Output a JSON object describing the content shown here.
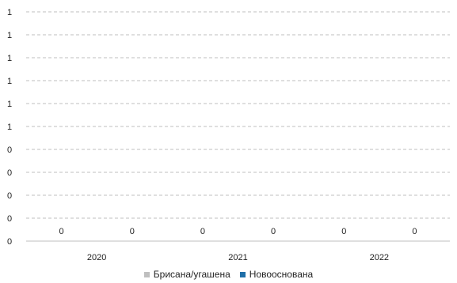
{
  "chart_data": {
    "type": "bar",
    "categories": [
      "2020",
      "2021",
      "2022"
    ],
    "series": [
      {
        "name": "Брисана/угашена",
        "values": [
          0,
          0,
          0
        ],
        "color": "#bfbfbf"
      },
      {
        "name": "Новооснована",
        "values": [
          0,
          0,
          0
        ],
        "color": "#1f6fa8"
      }
    ],
    "y_tick_labels": [
      "0",
      "0",
      "0",
      "0",
      "0",
      "1",
      "1",
      "1",
      "1",
      "1",
      "1"
    ],
    "data_labels": [
      "0",
      "0",
      "0",
      "0",
      "0",
      "0"
    ],
    "gridlines": true,
    "legend_position": "bottom"
  }
}
